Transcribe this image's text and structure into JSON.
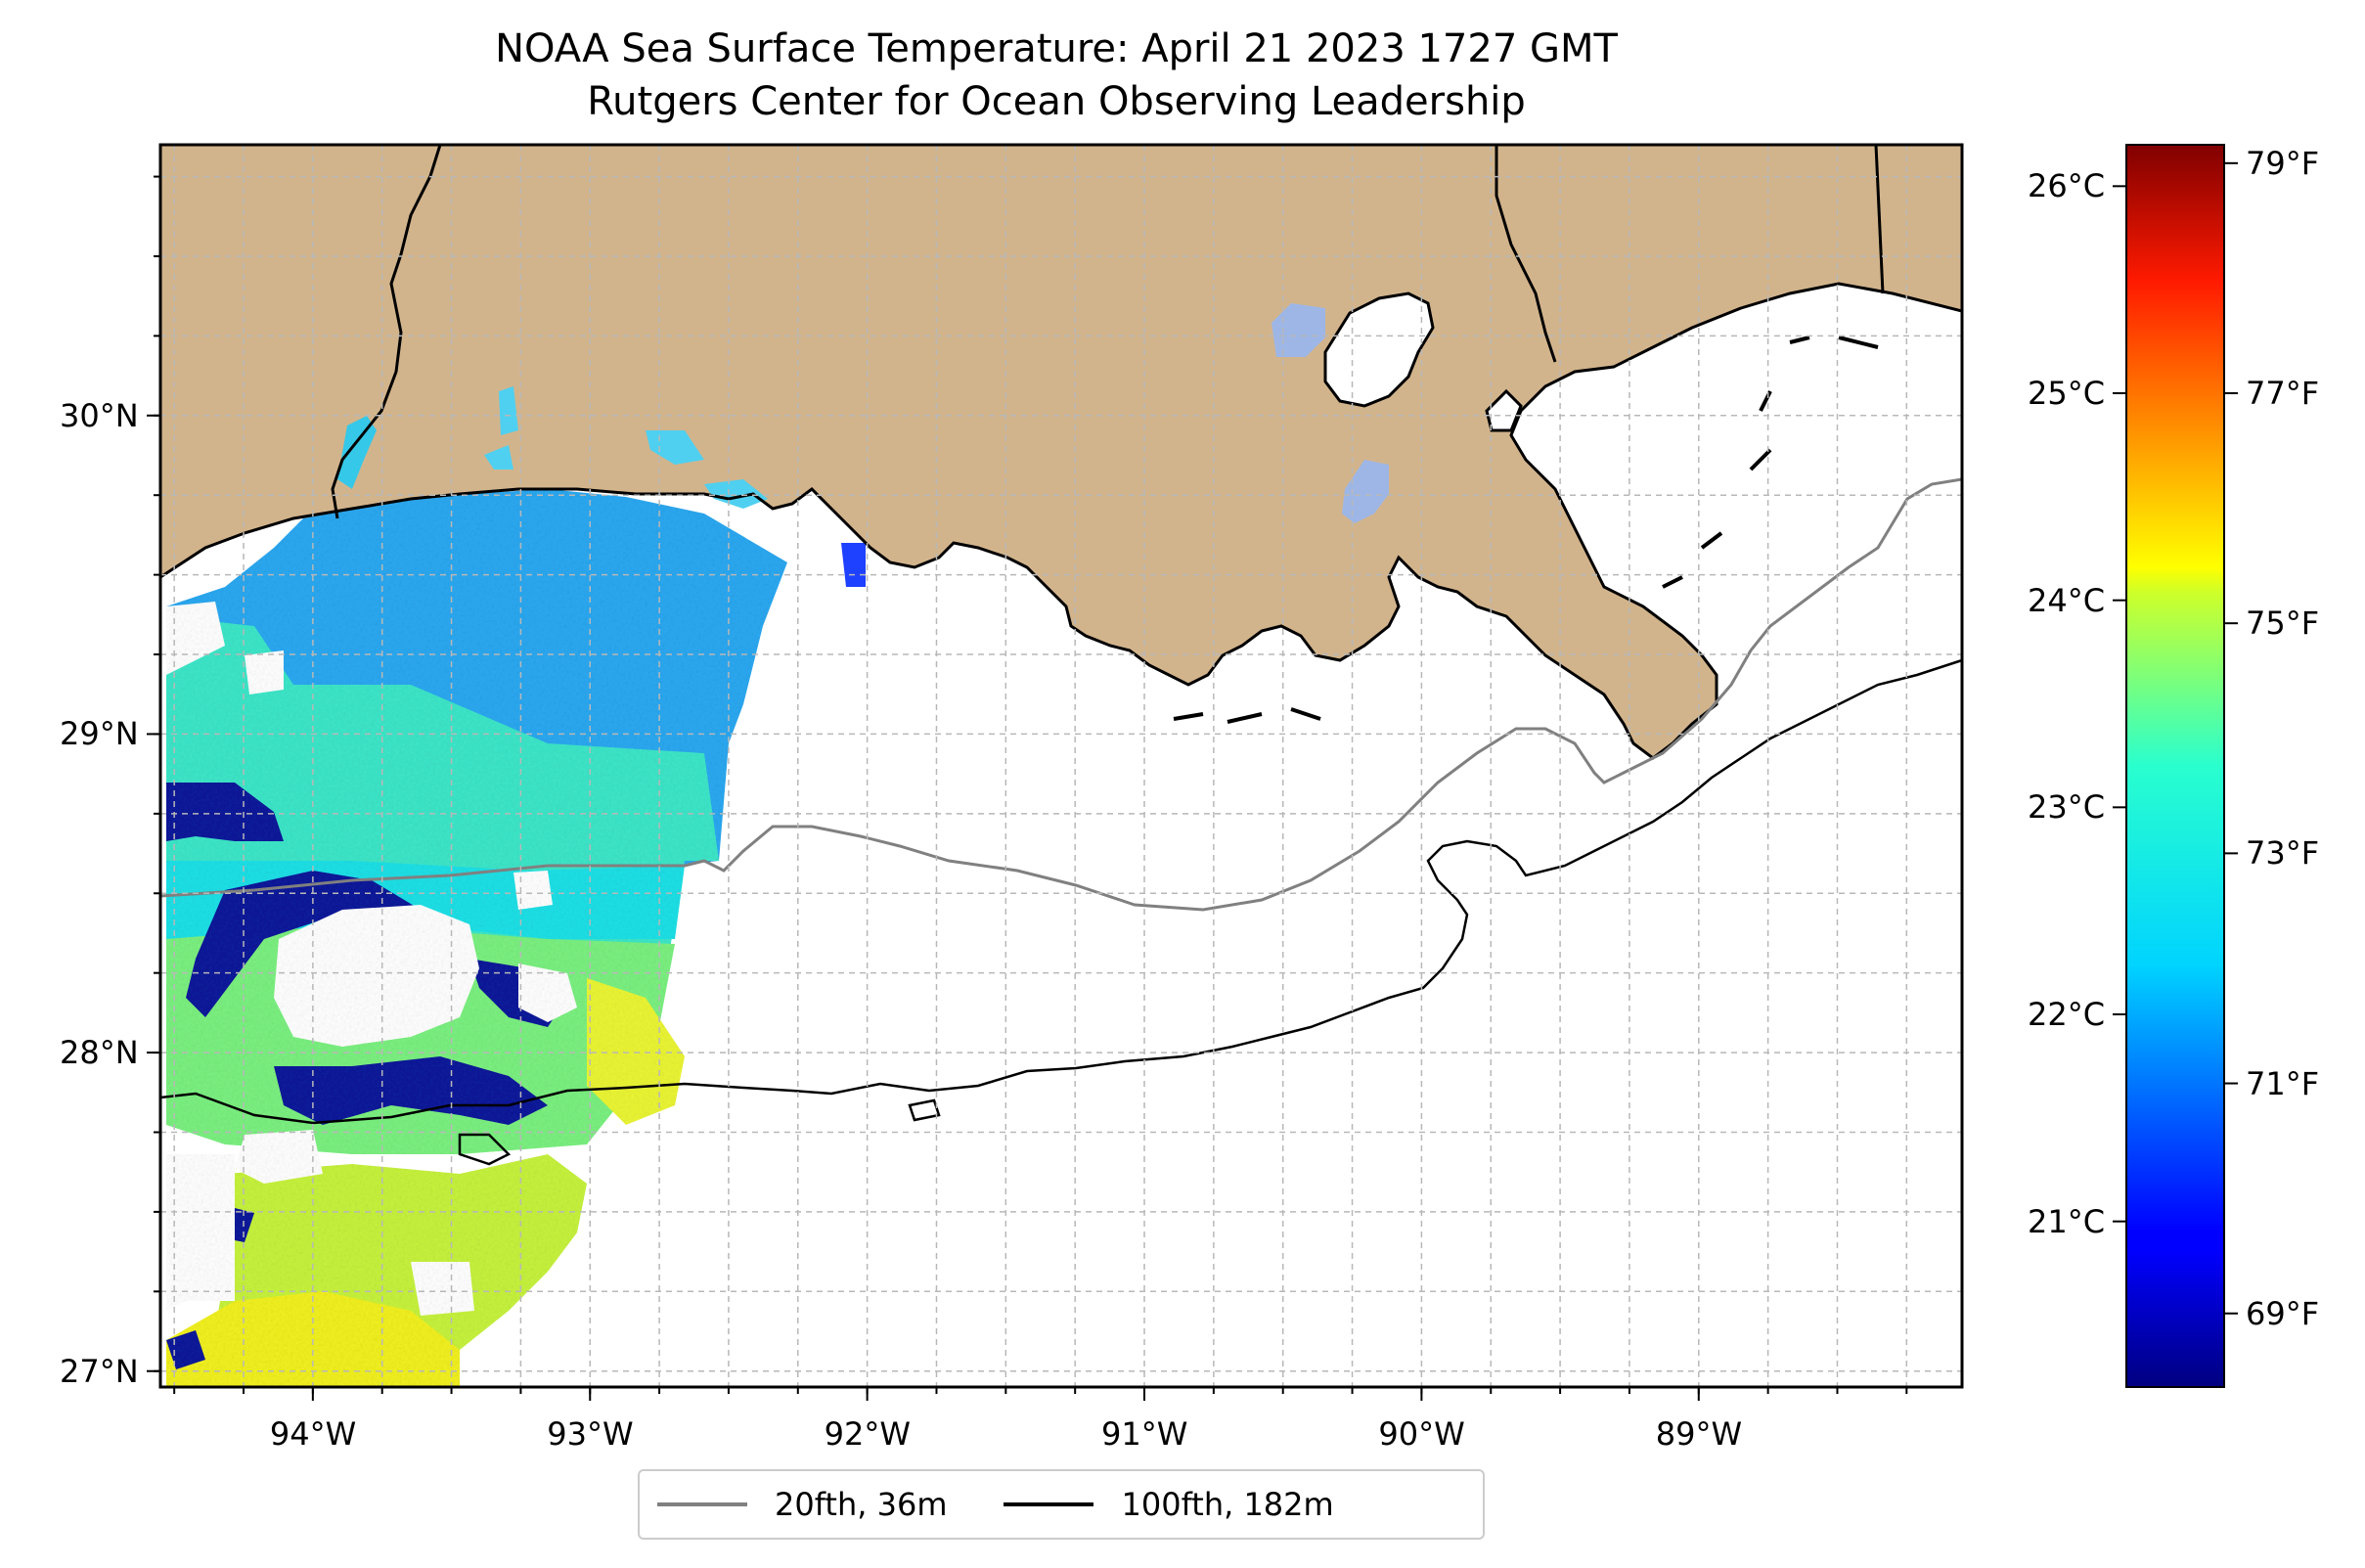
{
  "title": {
    "line1": "NOAA Sea Surface Temperature: April 21 2023 1727 GMT",
    "line2": "Rutgers Center for Ocean Observing Leadership"
  },
  "map": {
    "lon_range": [
      -94.55,
      -88.05
    ],
    "lat_range": [
      26.95,
      30.85
    ],
    "lon_ticks": [
      {
        "value": -94,
        "label": "94°W"
      },
      {
        "value": -93,
        "label": "93°W"
      },
      {
        "value": -92,
        "label": "92°W"
      },
      {
        "value": -91,
        "label": "91°W"
      },
      {
        "value": -90,
        "label": "90°W"
      },
      {
        "value": -89,
        "label": "89°W"
      }
    ],
    "lat_ticks": [
      {
        "value": 30,
        "label": "30°N"
      },
      {
        "value": 29,
        "label": "29°N"
      },
      {
        "value": 28,
        "label": "28°N"
      },
      {
        "value": 27,
        "label": "27°N"
      }
    ],
    "grid": true,
    "colors": {
      "land": "#d2b48c",
      "ocean": "#ffffff",
      "lake": "#9db6e6",
      "coastline": "#000000",
      "contour_20fth": "#808080",
      "contour_100fth": "#000000",
      "grid": "#b0b0b0"
    }
  },
  "colorbar": {
    "colormap": "jet",
    "celsius_range": [
      20.2,
      26.2
    ],
    "celsius_ticks": [
      {
        "value": 21,
        "label": "21°C"
      },
      {
        "value": 22,
        "label": "22°C"
      },
      {
        "value": 23,
        "label": "23°C"
      },
      {
        "value": 24,
        "label": "24°C"
      },
      {
        "value": 25,
        "label": "25°C"
      },
      {
        "value": 26,
        "label": "26°C"
      }
    ],
    "fahrenheit_ticks": [
      {
        "value": 69,
        "label": "69°F"
      },
      {
        "value": 71,
        "label": "71°F"
      },
      {
        "value": 73,
        "label": "73°F"
      },
      {
        "value": 75,
        "label": "75°F"
      },
      {
        "value": 77,
        "label": "77°F"
      },
      {
        "value": 79,
        "label": "79°F"
      }
    ]
  },
  "legend": {
    "placement": "bottom-center",
    "items": [
      {
        "label": "20fth, 36m",
        "color": "#808080"
      },
      {
        "label": "100fth, 182m",
        "color": "#000000"
      }
    ]
  }
}
